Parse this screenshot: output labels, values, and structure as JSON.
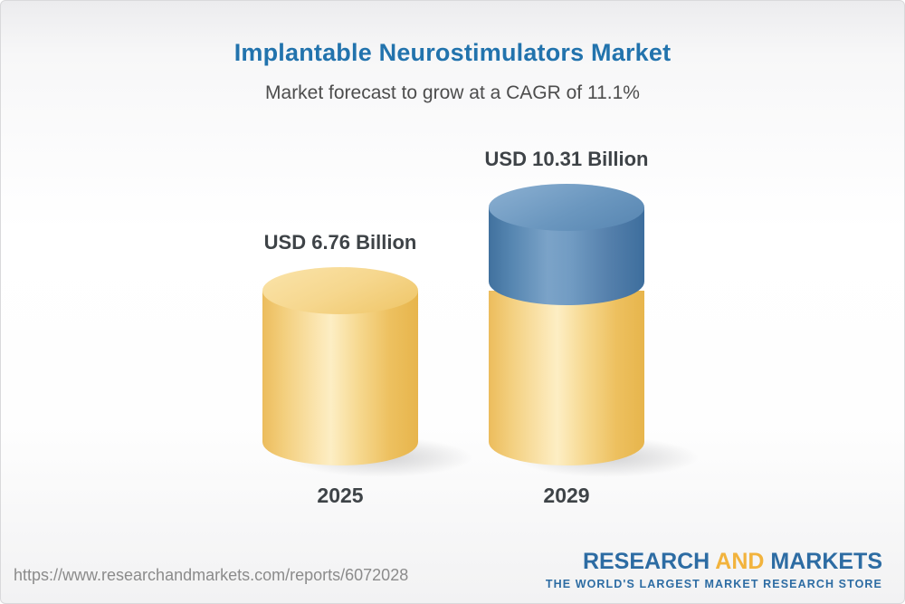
{
  "header": {
    "title": "Implantable Neurostimulators Market",
    "subtitle": "Market forecast to grow at a CAGR of 11.1%"
  },
  "chart_data": {
    "type": "bar",
    "style": "3d-cylinder",
    "categories": [
      "2025",
      "2029"
    ],
    "values": [
      6.76,
      10.31
    ],
    "unit": "USD Billion",
    "value_labels": [
      "USD 6.76 Billion",
      "USD 10.31 Billion"
    ],
    "title": "Implantable Neurostimulators Market",
    "subtitle": "Market forecast to grow at a CAGR of 11.1%",
    "cagr_percent": 11.1,
    "legend": "none",
    "grid": false,
    "colors": {
      "base_segment": "#f0c35f",
      "growth_segment": "#4a7aa8"
    }
  },
  "footer": {
    "url": "https://www.researchandmarkets.com/reports/6072028",
    "logo": {
      "part1": "RESEARCH",
      "part2": "AND",
      "part3": "MARKETS",
      "tagline": "THE WORLD'S LARGEST MARKET RESEARCH STORE"
    }
  },
  "colors": {
    "title_blue": "#2273ad",
    "subtitle_gray": "#4d4d4d",
    "label_dark": "#3e4347",
    "bar_yellow": "#f0c35f",
    "bar_blue": "#4a7aa8",
    "logo_blue": "#2d6ca3",
    "logo_gold": "#f2b33d",
    "url_gray": "#8b8b8b"
  }
}
